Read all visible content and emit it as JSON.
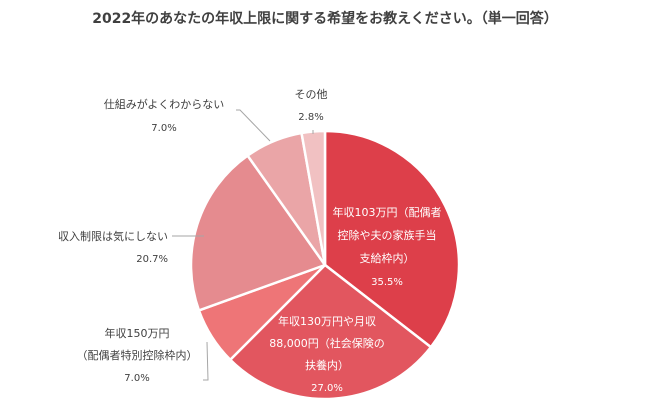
{
  "page": {
    "title": "2022年のあなたの年収上限に関する希望をお教えください。（単一回答）"
  },
  "chart_data": {
    "type": "pie",
    "title": "2022年のあなたの年収上限に関する希望をお教えください。（単一回答）",
    "slices": [
      {
        "lines": [
          "年収103万円（配偶者",
          "控除や夫の家族手当",
          "支給枠内）"
        ],
        "pct_label": "35.5%",
        "value": 35.5,
        "color": "#dd3f4a",
        "placement": "inside"
      },
      {
        "lines": [
          "年収130万円や月収",
          "88,000円（社会保険の",
          "扶養内）"
        ],
        "pct_label": "27.0%",
        "value": 27.0,
        "color": "#e2565f",
        "placement": "inside"
      },
      {
        "lines": [
          "年収150万円",
          "（配偶者特別控除枠内）"
        ],
        "pct_label": "7.0%",
        "value": 7.0,
        "color": "#ee7577",
        "placement": "outside-left"
      },
      {
        "lines": [
          "収入制限は気にしない"
        ],
        "pct_label": "20.7%",
        "value": 20.7,
        "color": "#e58b8f",
        "placement": "outside-left"
      },
      {
        "lines": [
          "仕組みがよくわからない"
        ],
        "pct_label": "7.0%",
        "value": 7.0,
        "color": "#eaa5a7",
        "placement": "outside-left"
      },
      {
        "lines": [
          "その他"
        ],
        "pct_label": "2.8%",
        "value": 2.8,
        "color": "#f1c1c2",
        "placement": "outside-top"
      }
    ]
  }
}
